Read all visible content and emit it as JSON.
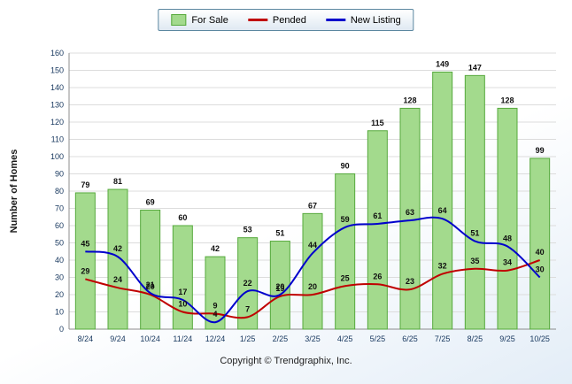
{
  "legend": {
    "items": [
      {
        "label": "For Sale",
        "type": "bar",
        "color": "#a3da8d",
        "border": "#56a93c"
      },
      {
        "label": "Pended",
        "type": "line",
        "color": "#c00000"
      },
      {
        "label": "New Listing",
        "type": "line",
        "color": "#0000cc"
      }
    ]
  },
  "chart_data": {
    "type": "bar",
    "categories": [
      "8/24",
      "9/24",
      "10/24",
      "11/24",
      "12/24",
      "1/25",
      "2/25",
      "3/25",
      "4/25",
      "5/25",
      "6/25",
      "7/25",
      "8/25",
      "9/25",
      "10/25"
    ],
    "series": [
      {
        "name": "For Sale",
        "type": "bar",
        "color": "#a3da8d",
        "border_color": "#56a93c",
        "values": [
          79,
          81,
          69,
          60,
          42,
          53,
          51,
          67,
          90,
          115,
          128,
          149,
          147,
          128,
          99
        ]
      },
      {
        "name": "Pended",
        "type": "line",
        "color": "#c00000",
        "values": [
          29,
          24,
          20,
          10,
          9,
          7,
          19,
          20,
          25,
          26,
          23,
          32,
          35,
          34,
          40
        ]
      },
      {
        "name": "New Listing",
        "type": "line",
        "color": "#0000cc",
        "values": [
          45,
          42,
          21,
          17,
          4,
          22,
          20,
          44,
          59,
          61,
          63,
          64,
          51,
          48,
          30
        ]
      }
    ],
    "title": "",
    "xlabel": "",
    "ylabel": "Number of Homes",
    "ylim": [
      0,
      160
    ],
    "ytick_step": 10,
    "grid": true,
    "legend_position": "top-center"
  },
  "footer": {
    "copyright": "Copyright © Trendgraphix, Inc."
  }
}
